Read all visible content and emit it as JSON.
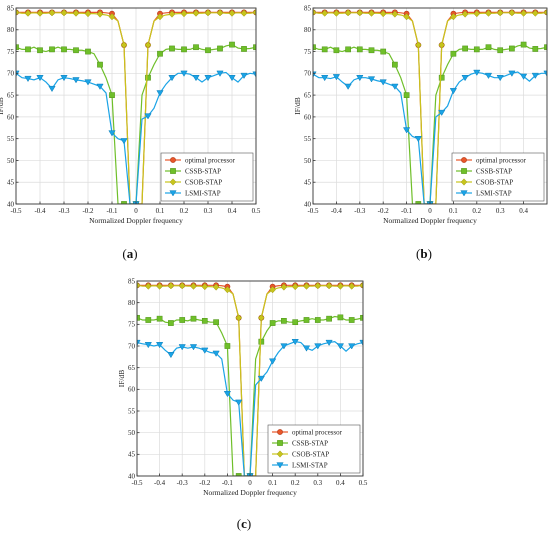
{
  "chart_data": [
    {
      "type": "line",
      "panel_label": "(a)",
      "xlabel": "Normalized Doppler frequency",
      "ylabel": "IF/dB",
      "xlim": [
        -0.5,
        0.5
      ],
      "ylim": [
        40,
        85
      ],
      "xticks": [
        "-0.5",
        "-0.4",
        "-0.3",
        "-0.2",
        "-0.1",
        "0",
        "0.1",
        "0.2",
        "0.3",
        "0.4",
        "0.5"
      ],
      "yticks": [
        "40",
        "45",
        "50",
        "55",
        "60",
        "65",
        "70",
        "75",
        "80",
        "85"
      ],
      "grid": true,
      "legend": "bottom-right",
      "x": [
        -0.5,
        -0.475,
        -0.45,
        -0.425,
        -0.4,
        -0.375,
        -0.35,
        -0.325,
        -0.3,
        -0.275,
        -0.25,
        -0.225,
        -0.2,
        -0.175,
        -0.15,
        -0.125,
        -0.1,
        -0.075,
        -0.05,
        -0.025,
        0,
        0.025,
        0.05,
        0.075,
        0.1,
        0.125,
        0.15,
        0.175,
        0.2,
        0.225,
        0.25,
        0.275,
        0.3,
        0.325,
        0.35,
        0.375,
        0.4,
        0.425,
        0.45,
        0.475,
        0.5
      ],
      "series": [
        {
          "name": "optimal processor",
          "color": "#e8562a",
          "marker": "circle",
          "values": [
            84,
            84,
            84,
            84,
            84,
            84,
            84,
            84,
            84,
            84,
            84,
            84,
            84,
            84,
            84,
            83.9,
            83.7,
            82,
            76.5,
            40,
            40,
            40,
            76.5,
            82,
            83.7,
            83.9,
            84,
            84,
            84,
            84,
            84,
            84,
            84,
            84,
            84,
            84,
            84,
            84,
            84,
            84,
            84
          ]
        },
        {
          "name": "CSSB-STAP",
          "color": "#6fbf2a",
          "marker": "square",
          "values": [
            76,
            75.5,
            75.5,
            76,
            75.3,
            75,
            75.5,
            76,
            75.5,
            75.5,
            75.3,
            75.3,
            75,
            74.5,
            72,
            69,
            65,
            40,
            40,
            40,
            40,
            65,
            69,
            72,
            74.5,
            75.5,
            75.7,
            75.5,
            75.5,
            75.5,
            76,
            75.5,
            75.3,
            75.5,
            75.7,
            76.3,
            76.6,
            75.8,
            75.6,
            75.7,
            76
          ]
        },
        {
          "name": "CSOB-STAP",
          "color": "#c7c41c",
          "marker": "diamond",
          "values": [
            84,
            83.8,
            83.8,
            83.9,
            83.8,
            83.8,
            83.9,
            83.9,
            83.9,
            83.8,
            83.8,
            83.8,
            83.7,
            83.7,
            83.6,
            83.4,
            83,
            82,
            76.5,
            40,
            40,
            40,
            76.5,
            82,
            83,
            83.4,
            83.6,
            83.7,
            83.7,
            83.8,
            83.8,
            83.8,
            83.9,
            83.9,
            83.9,
            83.8,
            83.8,
            83.9,
            83.8,
            83.8,
            84
          ]
        },
        {
          "name": "LSMI-STAP",
          "color": "#1aa3e6",
          "marker": "triangle-down",
          "values": [
            70,
            69,
            68.8,
            68.5,
            69,
            68,
            66.5,
            68.5,
            69,
            68.8,
            68.5,
            68.3,
            68,
            67.5,
            67,
            65.5,
            56.3,
            55,
            54.5,
            40,
            40,
            59.5,
            60.2,
            62,
            65.5,
            67.5,
            69,
            70,
            70,
            69.8,
            69,
            68,
            69,
            69.5,
            70,
            70.2,
            69,
            68,
            69.5,
            70,
            69.8
          ]
        }
      ]
    },
    {
      "type": "line",
      "panel_label": "(b)",
      "xlabel": "Normalized Doppler frequency",
      "ylabel": "IF/dB",
      "xlim": [
        -0.5,
        0.5
      ],
      "ylim": [
        40,
        85
      ],
      "xticks": [
        "-0.5",
        "-0.4",
        "-0.3",
        "-0.2",
        "-0.1",
        "0",
        "0.1",
        "0.2",
        "0.3",
        "0.4"
      ],
      "yticks": [
        "40",
        "45",
        "50",
        "55",
        "60",
        "65",
        "70",
        "75",
        "80",
        "85"
      ],
      "grid": true,
      "legend": "bottom-right",
      "x": [
        -0.5,
        -0.475,
        -0.45,
        -0.425,
        -0.4,
        -0.375,
        -0.35,
        -0.325,
        -0.3,
        -0.275,
        -0.25,
        -0.225,
        -0.2,
        -0.175,
        -0.15,
        -0.125,
        -0.1,
        -0.075,
        -0.05,
        -0.025,
        0,
        0.025,
        0.05,
        0.075,
        0.1,
        0.125,
        0.15,
        0.175,
        0.2,
        0.225,
        0.25,
        0.275,
        0.3,
        0.325,
        0.35,
        0.375,
        0.4,
        0.425,
        0.45,
        0.475,
        0.5
      ],
      "series": [
        {
          "name": "optimal processor",
          "color": "#e8562a",
          "marker": "circle",
          "values": [
            84,
            84,
            84,
            84,
            84,
            84,
            84,
            84,
            84,
            84,
            84,
            84,
            84,
            84,
            84,
            83.9,
            83.7,
            82,
            76.5,
            40,
            40,
            40,
            76.5,
            82,
            83.7,
            83.9,
            84,
            84,
            84,
            84,
            84,
            84,
            84,
            84,
            84,
            84,
            84,
            84,
            84,
            84,
            84
          ]
        },
        {
          "name": "CSSB-STAP",
          "color": "#6fbf2a",
          "marker": "square",
          "values": [
            76,
            75.5,
            75.5,
            76,
            75.3,
            75,
            75.5,
            76,
            75.5,
            75.5,
            75.3,
            75.3,
            75,
            74.5,
            72,
            69,
            65,
            40,
            40,
            40,
            40,
            65,
            69,
            72,
            74.5,
            75.5,
            75.7,
            75.5,
            75.5,
            75.5,
            76,
            75.5,
            75.3,
            75.5,
            75.7,
            76.3,
            76.6,
            75.8,
            75.6,
            75.7,
            76
          ]
        },
        {
          "name": "CSOB-STAP",
          "color": "#c7c41c",
          "marker": "diamond",
          "values": [
            84,
            83.8,
            83.8,
            83.9,
            83.8,
            83.8,
            83.9,
            83.9,
            83.9,
            83.8,
            83.8,
            83.8,
            83.7,
            83.7,
            83.6,
            83.4,
            83,
            82,
            76.5,
            40,
            40,
            40,
            76.5,
            82,
            83,
            83.4,
            83.6,
            83.7,
            83.7,
            83.8,
            83.8,
            83.8,
            83.9,
            83.9,
            83.9,
            83.8,
            83.8,
            83.9,
            83.8,
            83.8,
            84
          ]
        },
        {
          "name": "LSMI-STAP",
          "color": "#1aa3e6",
          "marker": "triangle-down",
          "values": [
            69.8,
            69,
            69,
            68.8,
            69.2,
            68,
            67,
            68.5,
            69,
            69,
            68.7,
            68.3,
            68,
            67.5,
            67,
            65.5,
            57,
            55.5,
            55,
            40,
            40,
            60,
            61,
            62.5,
            66,
            68,
            69,
            69.8,
            70.2,
            70,
            69.5,
            69,
            69,
            69.5,
            70,
            70.3,
            69.3,
            68.2,
            69.5,
            70,
            70
          ]
        }
      ]
    },
    {
      "type": "line",
      "panel_label": "(c)",
      "xlabel": "Normalized Doppler frequency",
      "ylabel": "IF/dB",
      "xlim": [
        -0.5,
        0.5
      ],
      "ylim": [
        40,
        85
      ],
      "xticks": [
        "-0.5",
        "-0.4",
        "-0.3",
        "-0.2",
        "-0.1",
        "0",
        "0.1",
        "0.2",
        "0.3",
        "0.4",
        "0.5"
      ],
      "yticks": [
        "40",
        "45",
        "50",
        "55",
        "60",
        "65",
        "70",
        "75",
        "80",
        "85"
      ],
      "grid": true,
      "legend": "bottom-right",
      "x": [
        -0.5,
        -0.475,
        -0.45,
        -0.425,
        -0.4,
        -0.375,
        -0.35,
        -0.325,
        -0.3,
        -0.275,
        -0.25,
        -0.225,
        -0.2,
        -0.175,
        -0.15,
        -0.125,
        -0.1,
        -0.075,
        -0.05,
        -0.025,
        0,
        0.025,
        0.05,
        0.075,
        0.1,
        0.125,
        0.15,
        0.175,
        0.2,
        0.225,
        0.25,
        0.275,
        0.3,
        0.325,
        0.35,
        0.375,
        0.4,
        0.425,
        0.45,
        0.475,
        0.5
      ],
      "series": [
        {
          "name": "optimal processor",
          "color": "#e8562a",
          "marker": "circle",
          "values": [
            84,
            84,
            84,
            84,
            84,
            84,
            84,
            84,
            84,
            84,
            84,
            84,
            84,
            84,
            84,
            83.9,
            83.7,
            82,
            76.5,
            40,
            40,
            40,
            76.5,
            82,
            83.7,
            83.9,
            84,
            84,
            84,
            84,
            84,
            84,
            84,
            84,
            84,
            84,
            84,
            84,
            84,
            84,
            84
          ]
        },
        {
          "name": "CSSB-STAP",
          "color": "#6fbf2a",
          "marker": "square",
          "values": [
            76.5,
            76,
            76,
            76,
            76.3,
            75.5,
            75.3,
            76,
            76,
            75.8,
            76.3,
            76,
            75.8,
            75.5,
            75.5,
            73,
            70,
            40,
            40,
            40,
            40,
            67,
            71,
            73.5,
            75.3,
            75.8,
            75.8,
            75.5,
            75.5,
            75.8,
            76,
            76.3,
            76,
            76,
            76.3,
            76.8,
            76.6,
            76,
            76,
            76.2,
            76.5
          ]
        },
        {
          "name": "CSOB-STAP",
          "color": "#c7c41c",
          "marker": "diamond",
          "values": [
            84,
            83.8,
            83.8,
            83.9,
            83.8,
            83.8,
            83.9,
            83.9,
            83.9,
            83.8,
            83.8,
            83.8,
            83.7,
            83.7,
            83.6,
            83.4,
            83,
            82,
            76.5,
            40,
            40,
            40,
            76.5,
            82,
            83,
            83.4,
            83.6,
            83.7,
            83.7,
            83.8,
            83.8,
            83.8,
            83.9,
            83.9,
            83.9,
            83.8,
            83.8,
            83.9,
            83.8,
            83.8,
            84
          ]
        },
        {
          "name": "LSMI-STAP",
          "color": "#1aa3e6",
          "marker": "triangle-down",
          "values": [
            70.8,
            70.5,
            70.3,
            70,
            70.3,
            69,
            68,
            69.5,
            69.8,
            69.5,
            69.8,
            69.5,
            69,
            68.5,
            68.3,
            67,
            59,
            57.5,
            57,
            40,
            40,
            61,
            62.5,
            64,
            66.5,
            68.5,
            70,
            70.5,
            71,
            70.8,
            69.5,
            69,
            70,
            70.5,
            70.8,
            71,
            70,
            68.8,
            70,
            70.5,
            70.8
          ]
        }
      ]
    }
  ]
}
